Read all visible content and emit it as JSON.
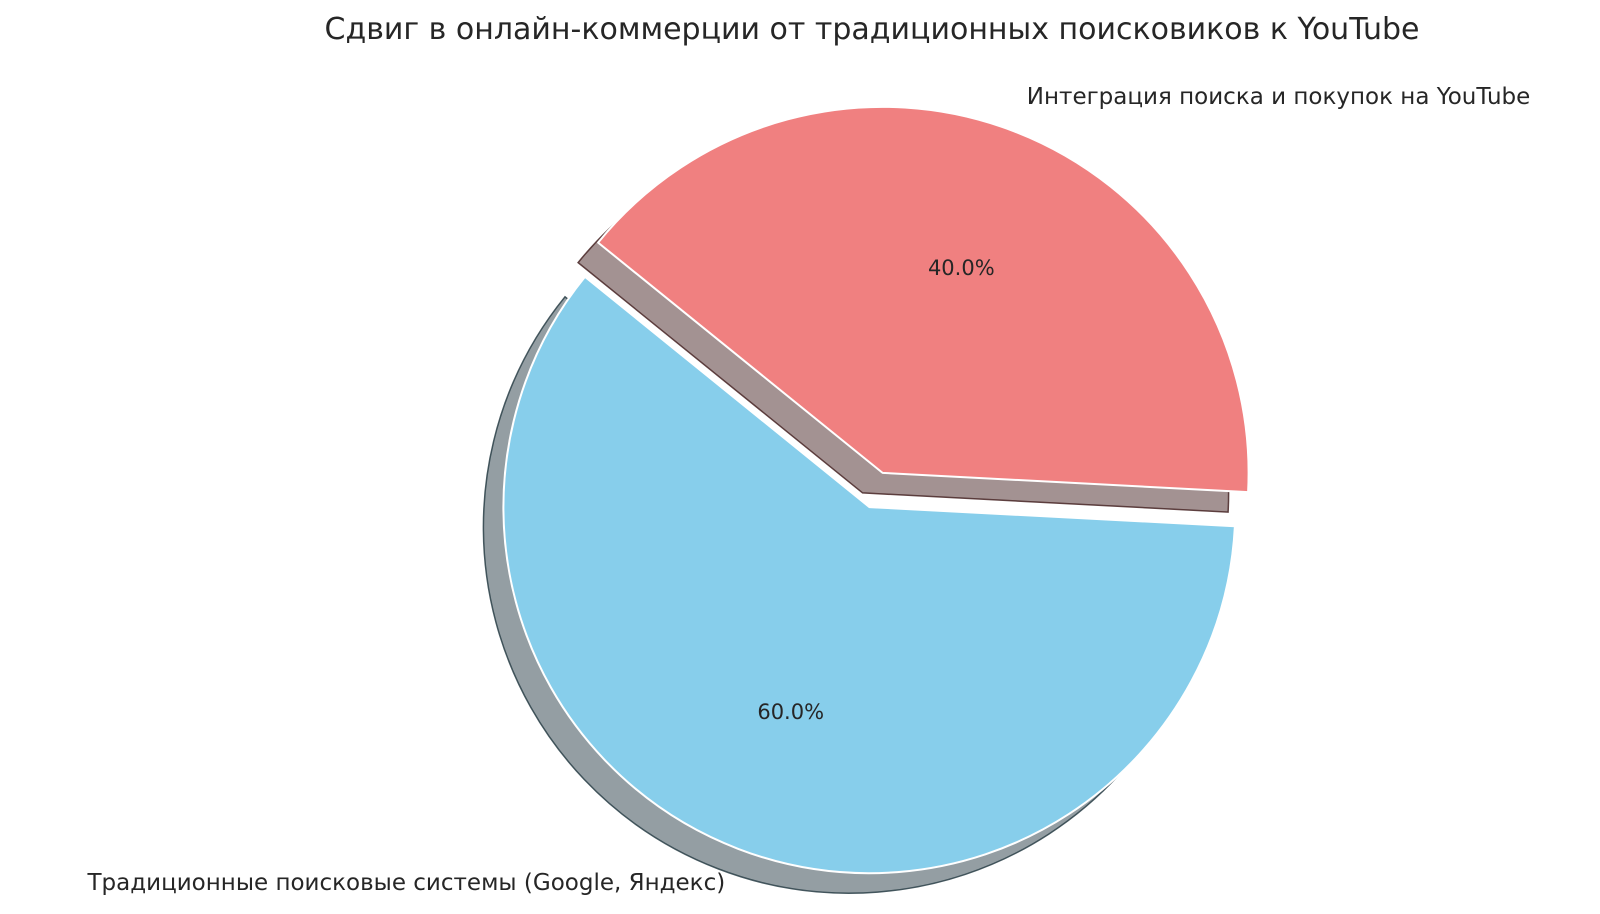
{
  "chart_data": {
    "type": "pie",
    "title": "Сдвиг в онлайн-коммерции от традиционных поисковиков к YouTube",
    "slices": [
      {
        "label": "Интеграция поиска и покупок на YouTube",
        "value": 40.0,
        "pct_label": "40.0%",
        "color": "#F08080"
      },
      {
        "label": "Традиционные поисковые системы (Google, Яндекс)",
        "value": 60.0,
        "pct_label": "60.0%",
        "color": "#87CEEB"
      }
    ],
    "start_angle": -3,
    "counterclockwise": true,
    "explode": [
      0.05,
      0.05
    ],
    "shadow": true,
    "pct_distance": 0.6,
    "label_distance": 1.1,
    "background_color": "#ffffff",
    "text_color": "#262626",
    "legend": "none"
  }
}
